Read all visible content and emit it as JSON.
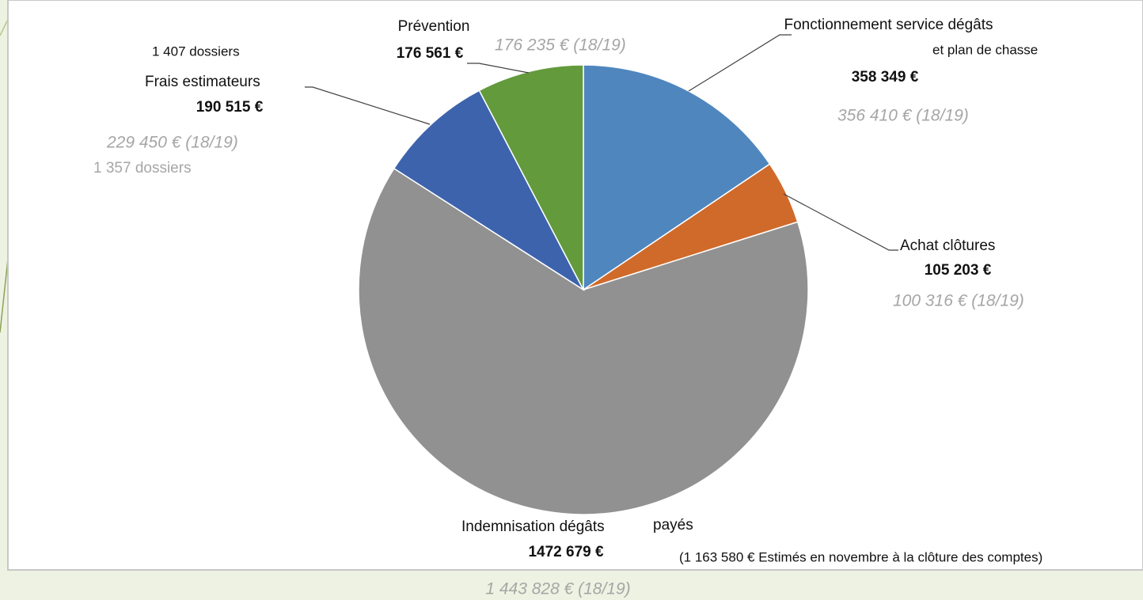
{
  "chart_data": {
    "type": "pie",
    "categories": [
      "Fonctionnement service dégâts",
      "Achat clôtures",
      "Indemnisation dégâts",
      "Frais estimateurs",
      "Prévention"
    ],
    "values": [
      358349,
      105203,
      1472679,
      190515,
      176561
    ],
    "value_labels": [
      "358 349 €",
      "105 203 €",
      "1472 679 €",
      "190 515 €",
      "176 561 €"
    ],
    "colors": [
      "#4f86be",
      "#d06a2a",
      "#919191",
      "#3d63ad",
      "#639a3c"
    ],
    "annotations": [
      "et plan de chasse",
      "payés",
      "1 407 dossiers",
      "176 235 € (18/19)",
      "356 410 € (18/19)",
      "100 316 € (18/19)",
      "229 450 € (18/19)",
      "1 357 dossiers",
      "(1 163 580 € Estimés en novembre à la clôture  des comptes)",
      "1 443 828 € (18/19)"
    ]
  }
}
